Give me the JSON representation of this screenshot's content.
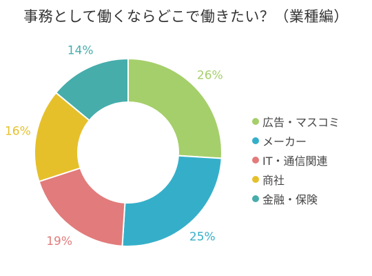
{
  "chart_data": {
    "type": "pie",
    "title": "事務として働くならどこで働きたい？（業種編）",
    "categories": [
      "広告・マスコミ",
      "メーカー",
      "IT・通信関連",
      "商社",
      "金融・保険"
    ],
    "values": [
      26,
      25,
      19,
      16,
      14
    ],
    "value_labels": [
      "26%",
      "25%",
      "19%",
      "16%",
      "14%"
    ],
    "colors": [
      "#a5cf6a",
      "#35afc9",
      "#e27b7b",
      "#e6c02b",
      "#46adab"
    ],
    "donut": true,
    "legend_position": "right"
  }
}
